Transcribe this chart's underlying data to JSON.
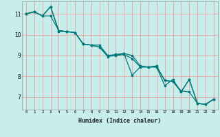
{
  "title": "",
  "xlabel": "Humidex (Indice chaleur)",
  "background_color": "#c8eeec",
  "grid_color": "#e8a0a0",
  "line_color": "#007878",
  "marker_color": "#007878",
  "xlim": [
    -0.5,
    23.5
  ],
  "ylim": [
    6.4,
    11.6
  ],
  "xticks": [
    0,
    1,
    2,
    3,
    4,
    5,
    6,
    7,
    8,
    9,
    10,
    11,
    12,
    13,
    14,
    15,
    16,
    17,
    18,
    19,
    20,
    21,
    22,
    23
  ],
  "yticks": [
    7,
    8,
    9,
    10,
    11
  ],
  "series1": [
    [
      0,
      11.0
    ],
    [
      1,
      11.1
    ],
    [
      2,
      10.9
    ],
    [
      3,
      11.35
    ],
    [
      4,
      10.15
    ],
    [
      5,
      10.15
    ],
    [
      6,
      10.1
    ],
    [
      7,
      9.55
    ],
    [
      8,
      9.5
    ],
    [
      9,
      9.5
    ],
    [
      10,
      9.0
    ],
    [
      11,
      9.0
    ],
    [
      12,
      9.1
    ],
    [
      13,
      8.05
    ],
    [
      14,
      8.45
    ],
    [
      15,
      8.45
    ],
    [
      16,
      8.45
    ],
    [
      17,
      7.55
    ],
    [
      18,
      7.85
    ],
    [
      19,
      7.25
    ],
    [
      20,
      7.85
    ],
    [
      21,
      6.7
    ],
    [
      22,
      6.65
    ],
    [
      23,
      6.9
    ]
  ],
  "series2": [
    [
      0,
      11.0
    ],
    [
      1,
      11.1
    ],
    [
      2,
      10.9
    ],
    [
      3,
      10.9
    ],
    [
      4,
      10.2
    ],
    [
      5,
      10.15
    ],
    [
      6,
      10.1
    ],
    [
      7,
      9.55
    ],
    [
      8,
      9.5
    ],
    [
      9,
      9.4
    ],
    [
      10,
      8.95
    ],
    [
      11,
      9.0
    ],
    [
      12,
      9.05
    ],
    [
      13,
      8.85
    ],
    [
      14,
      8.45
    ],
    [
      15,
      8.45
    ],
    [
      16,
      8.45
    ],
    [
      17,
      7.8
    ],
    [
      18,
      7.75
    ],
    [
      19,
      7.25
    ],
    [
      20,
      7.85
    ],
    [
      21,
      6.7
    ],
    [
      22,
      6.65
    ],
    [
      23,
      6.9
    ]
  ],
  "series3": [
    [
      0,
      11.0
    ],
    [
      1,
      11.1
    ],
    [
      2,
      10.9
    ],
    [
      3,
      11.35
    ],
    [
      4,
      10.2
    ],
    [
      5,
      10.15
    ],
    [
      6,
      10.1
    ],
    [
      7,
      9.55
    ],
    [
      8,
      9.5
    ],
    [
      9,
      9.4
    ],
    [
      10,
      9.0
    ],
    [
      11,
      9.05
    ],
    [
      12,
      9.1
    ],
    [
      13,
      9.0
    ],
    [
      14,
      8.5
    ],
    [
      15,
      8.45
    ],
    [
      16,
      8.5
    ],
    [
      17,
      7.8
    ],
    [
      18,
      7.75
    ],
    [
      19,
      7.3
    ],
    [
      20,
      7.25
    ],
    [
      21,
      6.7
    ],
    [
      22,
      6.65
    ],
    [
      23,
      6.9
    ]
  ]
}
